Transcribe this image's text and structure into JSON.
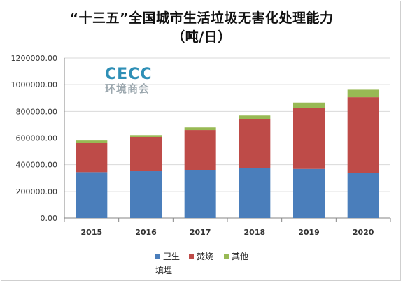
{
  "title_line1": "“十三五”全国城市生活垃圾无害化处理能力",
  "title_line2": "（吨/日）",
  "watermark": {
    "mark": "CECC",
    "sub": "环境商会"
  },
  "colors": {
    "landfill": "#4a7ebb",
    "incineration": "#be4b48",
    "other": "#98b954",
    "grid": "#d9d9d9",
    "axis": "#868686"
  },
  "chart_data": {
    "type": "bar",
    "stacked": true,
    "categories": [
      "2015",
      "2016",
      "2017",
      "2018",
      "2019",
      "2020"
    ],
    "series": [
      {
        "name": "卫生填埋",
        "key": "landfill",
        "values": [
          344000,
          351000,
          361000,
          374000,
          368000,
          338000
        ]
      },
      {
        "name": "焚烧",
        "key": "incineration",
        "values": [
          220000,
          257000,
          299000,
          365000,
          458000,
          568000
        ]
      },
      {
        "name": "其他",
        "key": "other",
        "values": [
          17000,
          14000,
          20000,
          30000,
          40000,
          56000
        ]
      }
    ],
    "y_ticks": [
      "0.00",
      "200000.00",
      "400000.00",
      "600000.00",
      "800000.00",
      "1000000.00",
      "1200000.00"
    ],
    "ylim": [
      0,
      1200000
    ],
    "grid": true,
    "legend_position": "bottom"
  }
}
